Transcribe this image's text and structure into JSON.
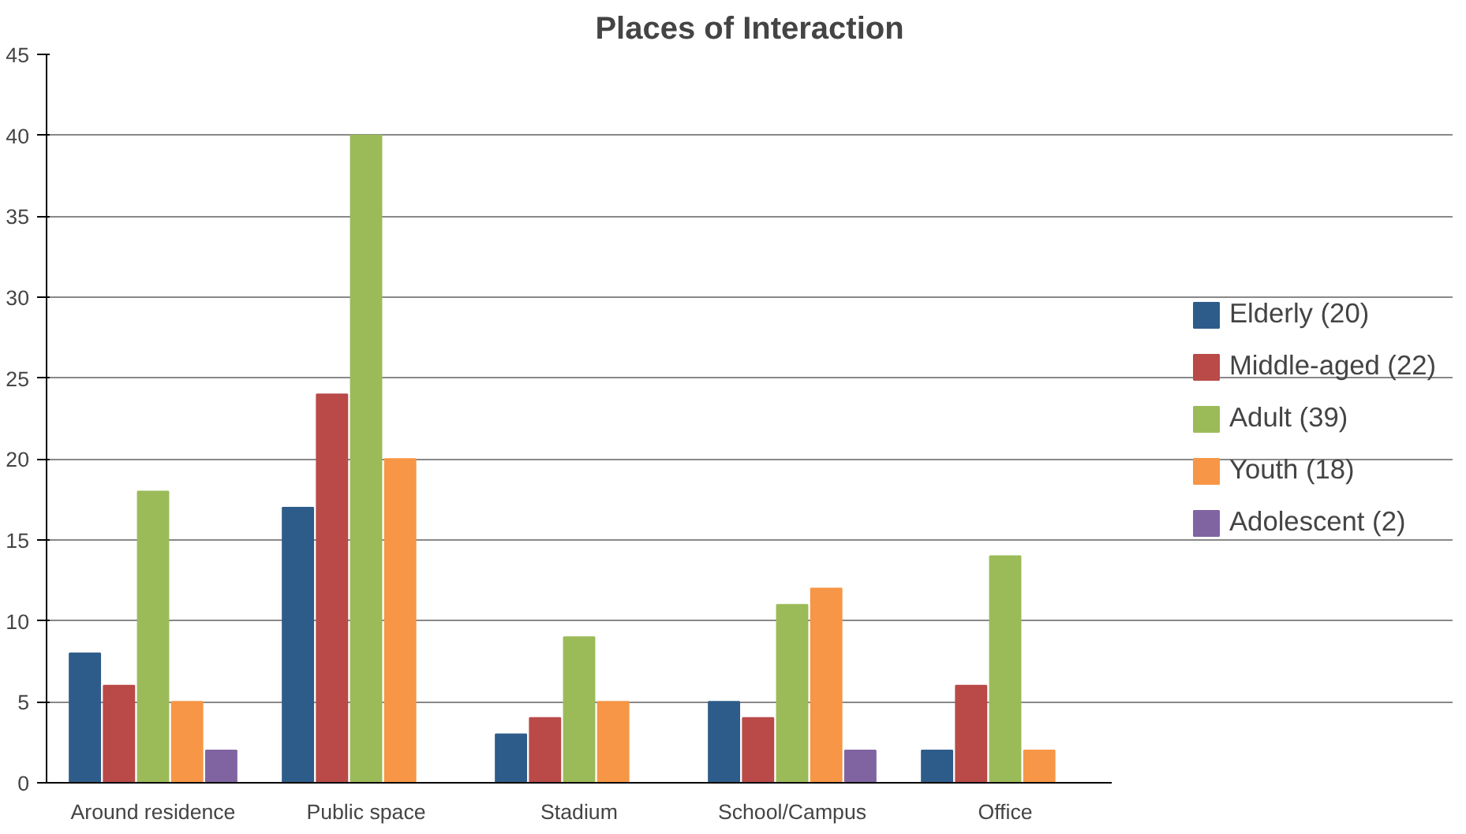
{
  "chart_data": {
    "type": "bar",
    "title": "Places of Interaction",
    "categories": [
      "Around residence",
      "Public space",
      "Stadium",
      "School/Campus",
      "Office"
    ],
    "series": [
      {
        "name": "Elderly (20)",
        "color": "#2e5c8a",
        "values": [
          8,
          17,
          3,
          5,
          2
        ]
      },
      {
        "name": "Middle-aged (22)",
        "color": "#b94a48",
        "values": [
          6,
          24,
          4,
          4,
          6
        ]
      },
      {
        "name": "Adult (39)",
        "color": "#9bbb59",
        "values": [
          18,
          40,
          9,
          11,
          14
        ]
      },
      {
        "name": "Youth (18)",
        "color": "#f79646",
        "values": [
          5,
          20,
          5,
          12,
          2
        ]
      },
      {
        "name": "Adolescent (2)",
        "color": "#8064a2",
        "values": [
          2,
          0,
          0,
          2,
          0
        ]
      }
    ],
    "ylim": [
      0,
      45
    ],
    "yticks": [
      0,
      5,
      10,
      15,
      20,
      25,
      30,
      35,
      40,
      45
    ],
    "grid": "y",
    "legend": "right"
  }
}
